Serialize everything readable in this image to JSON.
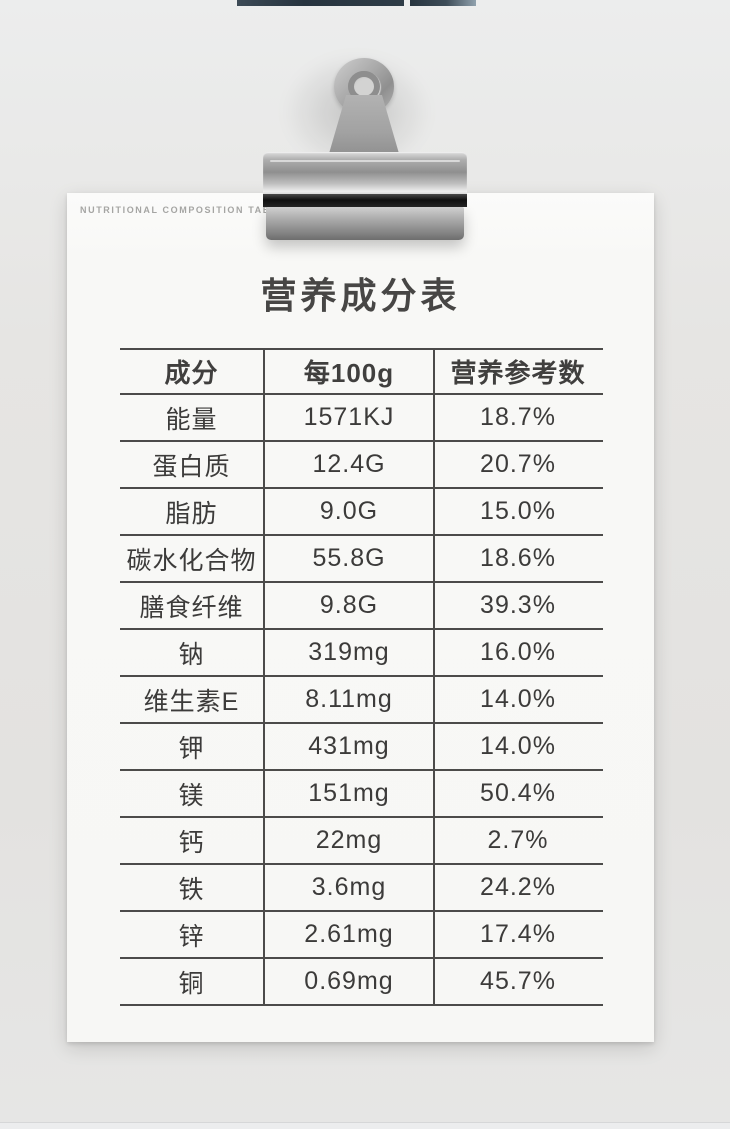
{
  "colors": {
    "background": "#e5e4e2",
    "top_bar": "#2b3844",
    "paper": "#f8f8f6",
    "table_line": "#4c4b4a",
    "body_text": "#3c3b3a",
    "title_text": "#474645",
    "eyebrow_text": "#a5a5a3",
    "clip_metal": "#a8a8a8"
  },
  "paper": {
    "eyebrow": "NUTRITIONAL COMPOSITION TABLE",
    "title": "营养成分表",
    "table": {
      "headers": [
        "成分",
        "每100g",
        "营养参考数"
      ],
      "rows": [
        [
          "能量",
          "1571KJ",
          "18.7%"
        ],
        [
          "蛋白质",
          "12.4G",
          "20.7%"
        ],
        [
          "脂肪",
          "9.0G",
          "15.0%"
        ],
        [
          "碳水化合物",
          "55.8G",
          "18.6%"
        ],
        [
          "膳食纤维",
          "9.8G",
          "39.3%"
        ],
        [
          "钠",
          "319mg",
          "16.0%"
        ],
        [
          "维生素E",
          "8.11mg",
          "14.0%"
        ],
        [
          "钾",
          "431mg",
          "14.0%"
        ],
        [
          "镁",
          "151mg",
          "50.4%"
        ],
        [
          "钙",
          "22mg",
          "2.7%"
        ],
        [
          "铁",
          "3.6mg",
          "24.2%"
        ],
        [
          "锌",
          "2.61mg",
          "17.4%"
        ],
        [
          "铜",
          "0.69mg",
          "45.7%"
        ]
      ]
    }
  }
}
